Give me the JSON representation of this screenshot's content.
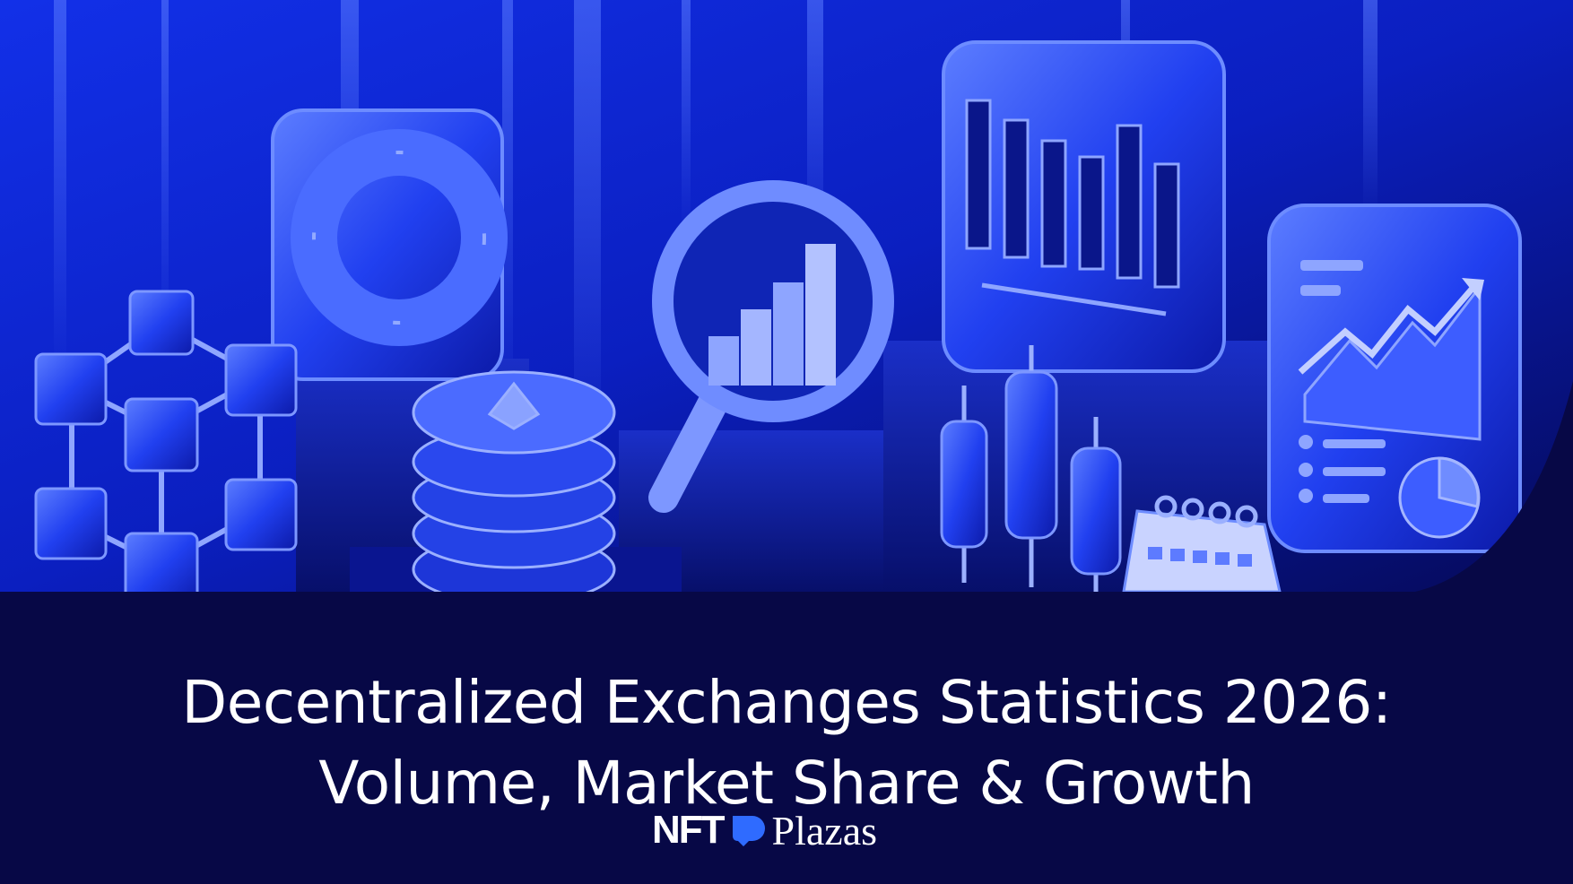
{
  "title": {
    "line1": "Decentralized Exchanges Statistics 2026:",
    "line2": "Volume, Market Share & Growth"
  },
  "brand": {
    "logo_text_bold": "NFT",
    "logo_text_light": "Plazas",
    "logo_mark_color": "#2f6bff"
  },
  "colors": {
    "background": "#070846",
    "hero_blue": "#1f3cff",
    "text": "#ffffff"
  },
  "illustration": {
    "icons": [
      "blockchain-cubes-icon",
      "donut-chart-icon",
      "coin-stack-icon",
      "magnifier-bar-chart-icon",
      "bar-chart-panel-icon",
      "candlestick-icon",
      "report-panel-icon",
      "calendar-icon"
    ]
  }
}
